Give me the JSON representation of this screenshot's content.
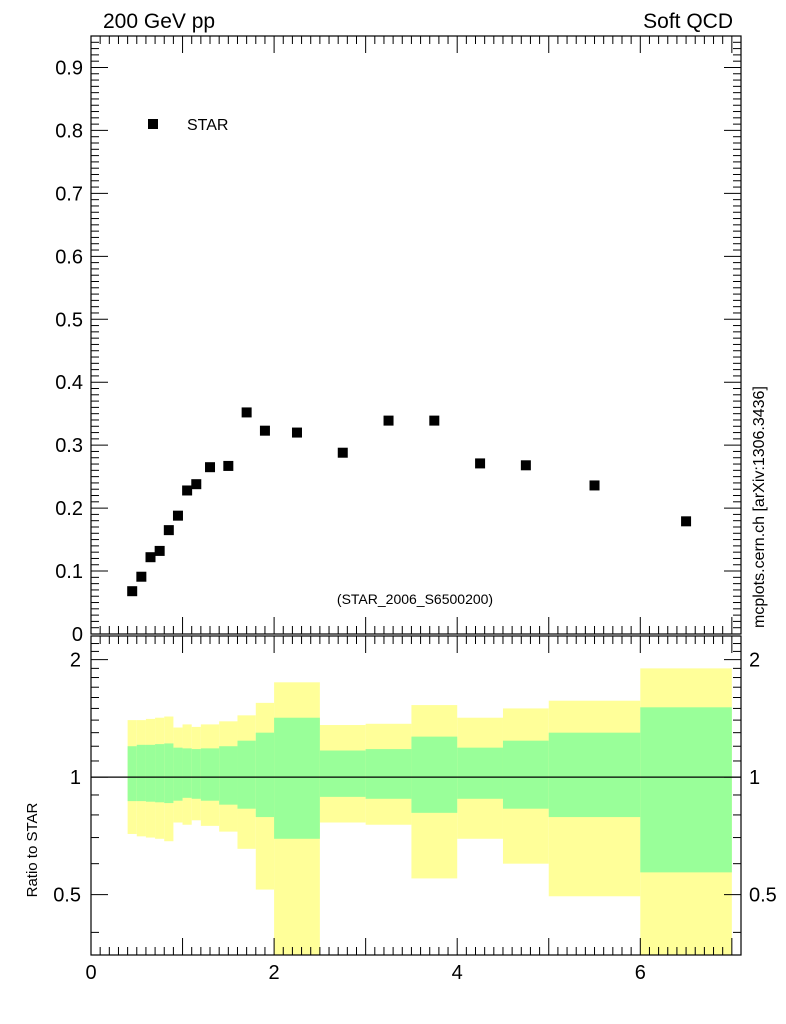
{
  "header": {
    "left_title": "200 GeV pp",
    "right_title": "Soft QCD"
  },
  "side_label": "mcplots.cern.ch [arXiv:1306.3436]",
  "chart_data": [
    {
      "type": "scatter",
      "panel": "main",
      "legend_entry": "STAR",
      "annotation": "(STAR_2006_S6500200)",
      "ylim": [
        0,
        0.95
      ],
      "yticks": [
        "0",
        "0.1",
        "0.2",
        "0.3",
        "0.4",
        "0.5",
        "0.6",
        "0.7",
        "0.8",
        "0.9"
      ],
      "series": [
        {
          "name": "STAR",
          "x": [
            0.45,
            0.55,
            0.65,
            0.75,
            0.85,
            0.95,
            1.05,
            1.15,
            1.3,
            1.5,
            1.7,
            1.9,
            2.25,
            2.75,
            3.25,
            3.75,
            4.25,
            4.75,
            5.5,
            6.5
          ],
          "y": [
            0.068,
            0.091,
            0.122,
            0.132,
            0.165,
            0.188,
            0.228,
            0.238,
            0.265,
            0.267,
            0.352,
            0.323,
            0.32,
            0.288,
            0.339,
            0.339,
            0.271,
            0.268,
            0.236,
            0.179
          ]
        }
      ]
    },
    {
      "type": "area",
      "panel": "ratio",
      "ylabel": "Ratio to STAR",
      "xlim": [
        0,
        7.1
      ],
      "ylim": [
        0.35,
        2.3
      ],
      "xticks": [
        "0",
        "2",
        "4",
        "6"
      ],
      "yticks": [
        "0.5",
        "1",
        "2"
      ],
      "bins": [
        {
          "lo": 0.4,
          "hi": 0.5,
          "inner": [
            0.868,
            1.2
          ],
          "outer": [
            0.715,
            1.4
          ]
        },
        {
          "lo": 0.5,
          "hi": 0.6,
          "inner": [
            0.868,
            1.21
          ],
          "outer": [
            0.705,
            1.4
          ]
        },
        {
          "lo": 0.6,
          "hi": 0.7,
          "inner": [
            0.865,
            1.21
          ],
          "outer": [
            0.7,
            1.41
          ]
        },
        {
          "lo": 0.7,
          "hi": 0.8,
          "inner": [
            0.862,
            1.215
          ],
          "outer": [
            0.695,
            1.42
          ]
        },
        {
          "lo": 0.8,
          "hi": 0.9,
          "inner": [
            0.858,
            1.22
          ],
          "outer": [
            0.685,
            1.43
          ]
        },
        {
          "lo": 0.9,
          "hi": 1.0,
          "inner": [
            0.87,
            1.19
          ],
          "outer": [
            0.765,
            1.34
          ]
        },
        {
          "lo": 1.0,
          "hi": 1.1,
          "inner": [
            0.885,
            1.185
          ],
          "outer": [
            0.755,
            1.365
          ]
        },
        {
          "lo": 1.1,
          "hi": 1.2,
          "inner": [
            0.88,
            1.18
          ],
          "outer": [
            0.775,
            1.345
          ]
        },
        {
          "lo": 1.2,
          "hi": 1.4,
          "inner": [
            0.87,
            1.185
          ],
          "outer": [
            0.75,
            1.365
          ]
        },
        {
          "lo": 1.4,
          "hi": 1.6,
          "inner": [
            0.85,
            1.2
          ],
          "outer": [
            0.725,
            1.39
          ]
        },
        {
          "lo": 1.6,
          "hi": 1.8,
          "inner": [
            0.83,
            1.24
          ],
          "outer": [
            0.655,
            1.44
          ]
        },
        {
          "lo": 1.8,
          "hi": 2.0,
          "inner": [
            0.79,
            1.3
          ],
          "outer": [
            0.515,
            1.55
          ]
        },
        {
          "lo": 2.0,
          "hi": 2.5,
          "inner": [
            0.695,
            1.42
          ],
          "outer": [
            0.3,
            1.75
          ]
        },
        {
          "lo": 2.5,
          "hi": 3.0,
          "inner": [
            0.89,
            1.17
          ],
          "outer": [
            0.765,
            1.36
          ]
        },
        {
          "lo": 3.0,
          "hi": 3.5,
          "inner": [
            0.88,
            1.18
          ],
          "outer": [
            0.755,
            1.37
          ]
        },
        {
          "lo": 3.5,
          "hi": 4.0,
          "inner": [
            0.81,
            1.27
          ],
          "outer": [
            0.55,
            1.53
          ]
        },
        {
          "lo": 4.0,
          "hi": 4.5,
          "inner": [
            0.88,
            1.19
          ],
          "outer": [
            0.695,
            1.42
          ]
        },
        {
          "lo": 4.5,
          "hi": 5.0,
          "inner": [
            0.83,
            1.24
          ],
          "outer": [
            0.6,
            1.5
          ]
        },
        {
          "lo": 5.0,
          "hi": 6.0,
          "inner": [
            0.79,
            1.3
          ],
          "outer": [
            0.495,
            1.57
          ]
        },
        {
          "lo": 6.0,
          "hi": 7.0,
          "inner": [
            0.57,
            1.51
          ],
          "outer": [
            0.3,
            1.9
          ]
        }
      ]
    }
  ],
  "colors": {
    "inner_band": "#99ff99",
    "outer_band": "#ffff99",
    "marker": "#000000",
    "annotation": "#999999",
    "side_label": "#555555"
  }
}
